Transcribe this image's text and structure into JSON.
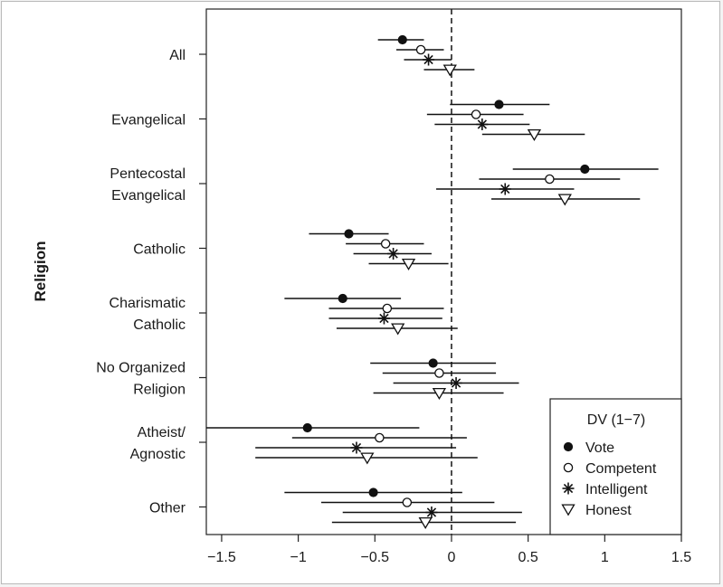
{
  "chart_data": {
    "type": "scatter",
    "ylabel": "Religion",
    "xlim": [
      -1.6,
      1.5
    ],
    "xticks": [
      -1.5,
      -1,
      -0.5,
      0,
      0.5,
      1,
      1.5
    ],
    "xtick_labels": [
      "−1.5",
      "−1",
      "−0.5",
      "0",
      "0.5",
      "1",
      "1.5"
    ],
    "reference_line_x": 0,
    "categories": [
      [
        "All"
      ],
      [
        "Evangelical"
      ],
      [
        "Pentecostal",
        "Evangelical"
      ],
      [
        "Catholic"
      ],
      [
        "Charismatic",
        "Catholic"
      ],
      [
        "No Organized",
        "Religion"
      ],
      [
        "Atheist/",
        "Agnostic"
      ],
      [
        "Other"
      ]
    ],
    "legend": {
      "title": "DV (1−7)",
      "position": "bottom-right",
      "entries": [
        {
          "name": "Vote",
          "marker": "filled-circle"
        },
        {
          "name": "Competent",
          "marker": "open-circle"
        },
        {
          "name": "Intelligent",
          "marker": "asterisk"
        },
        {
          "name": "Honest",
          "marker": "open-triangle"
        }
      ]
    },
    "series": [
      {
        "name": "Vote",
        "values": [
          -0.32,
          0.31,
          0.87,
          -0.67,
          -0.71,
          -0.12,
          -0.94,
          -0.51
        ],
        "lower": [
          -0.48,
          -0.01,
          0.4,
          -0.93,
          -1.09,
          -0.53,
          -1.62,
          -1.09
        ],
        "upper": [
          -0.18,
          0.64,
          1.35,
          -0.41,
          -0.33,
          0.29,
          -0.21,
          0.07
        ]
      },
      {
        "name": "Competent",
        "values": [
          -0.2,
          0.16,
          0.64,
          -0.43,
          -0.42,
          -0.08,
          -0.47,
          -0.29
        ],
        "lower": [
          -0.36,
          -0.16,
          0.18,
          -0.69,
          -0.8,
          -0.45,
          -1.04,
          -0.85
        ],
        "upper": [
          -0.05,
          0.47,
          1.1,
          -0.18,
          -0.05,
          0.29,
          0.1,
          0.28
        ]
      },
      {
        "name": "Intelligent",
        "values": [
          -0.15,
          0.2,
          0.35,
          -0.38,
          -0.44,
          0.03,
          -0.62,
          -0.13
        ],
        "lower": [
          -0.31,
          -0.11,
          -0.1,
          -0.64,
          -0.8,
          -0.38,
          -1.28,
          -0.71
        ],
        "upper": [
          0.0,
          0.51,
          0.8,
          -0.13,
          -0.06,
          0.44,
          0.03,
          0.46
        ]
      },
      {
        "name": "Honest",
        "values": [
          -0.01,
          0.54,
          0.74,
          -0.28,
          -0.35,
          -0.08,
          -0.55,
          -0.17
        ],
        "lower": [
          -0.18,
          0.2,
          0.26,
          -0.54,
          -0.75,
          -0.51,
          -1.28,
          -0.78
        ],
        "upper": [
          0.15,
          0.87,
          1.23,
          -0.02,
          0.04,
          0.34,
          0.17,
          0.42
        ]
      }
    ]
  }
}
